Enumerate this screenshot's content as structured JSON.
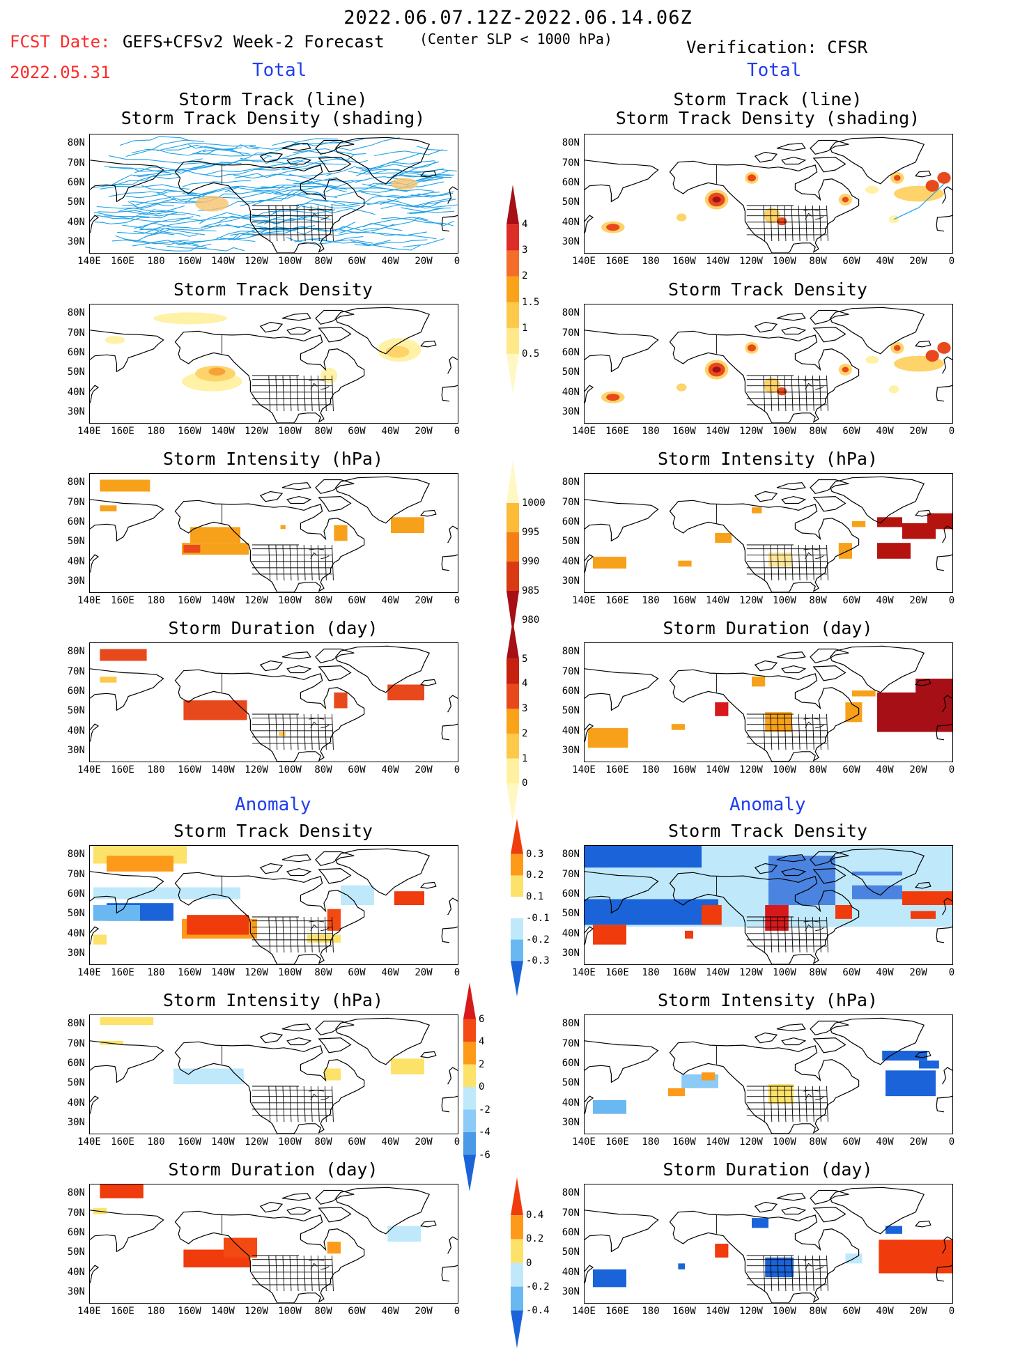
{
  "header": {
    "date_range": "2022.06.07.12Z-2022.06.14.06Z",
    "fcst_label": "FCST Date:",
    "fcst_date": "2022.05.31",
    "forecast_name": "GEFS+CFSv2 Week-2 Forecast",
    "criterion": "(Center SLP < 1000 hPa)",
    "verification": "Verification: CFSR"
  },
  "sections": {
    "total_left": "Total",
    "total_right": "Total",
    "anomaly_left": "Anomaly",
    "anomaly_right": "Anomaly"
  },
  "panel_titles": {
    "track_line": "Storm Track (line)",
    "track_shading": "Storm Track Density (shading)",
    "density": "Storm Track Density",
    "intensity": "Storm Intensity (hPa)",
    "duration": "Storm Duration (day)"
  },
  "axes": {
    "lat_labels": [
      "80N",
      "70N",
      "60N",
      "50N",
      "40N",
      "30N"
    ],
    "lon_labels": [
      "140E",
      "160E",
      "180",
      "160W",
      "140W",
      "120W",
      "100W",
      "80W",
      "60W",
      "40W",
      "20W",
      "0"
    ]
  },
  "colorbars": {
    "density_total": {
      "labels": [
        "4",
        "3",
        "2",
        "1.5",
        "1",
        "0.5"
      ],
      "colors": [
        "#a50f15",
        "#de2d26",
        "#f46d2a",
        "#f9a21a",
        "#fdc94a",
        "#fee88a",
        "#fff8c4"
      ]
    },
    "intensity_total": {
      "labels": [
        "1000",
        "995",
        "990",
        "985",
        "980"
      ],
      "colors": [
        "#fff8c4",
        "#fdbb3a",
        "#f57f17",
        "#d93a14",
        "#a50f15"
      ]
    },
    "duration_total": {
      "labels": [
        "5",
        "4",
        "3",
        "2",
        "1",
        "0"
      ],
      "colors": [
        "#a50f15",
        "#c8200e",
        "#e8491c",
        "#f9a21a",
        "#fdc94a",
        "#fff1a0",
        "#fff8c4"
      ]
    },
    "density_anom": {
      "labels": [
        "0.3",
        "0.2",
        "0.1",
        "-0.1",
        "-0.2",
        "-0.3"
      ],
      "colors": [
        "#f03b0c",
        "#fd9a1a",
        "#fde26a",
        "#ffffff",
        "#bfe9fb",
        "#6ab8f2",
        "#1b63d8"
      ]
    },
    "intensity_anom": {
      "labels": [
        "6",
        "4",
        "2",
        "0",
        "-2",
        "-4",
        "-6"
      ],
      "colors": [
        "#d7191c",
        "#f24a12",
        "#fd9a1a",
        "#fde26a",
        "#bfe9fb",
        "#8ccbf7",
        "#4a9ae8",
        "#1b63d8"
      ]
    },
    "duration_anom": {
      "labels": [
        "0.4",
        "0.2",
        "0",
        "-0.2",
        "-0.4"
      ],
      "colors": [
        "#f03b0c",
        "#fd9a1a",
        "#fde26a",
        "#bfe9fb",
        "#6ab8f2",
        "#1b63d8"
      ]
    }
  }
}
